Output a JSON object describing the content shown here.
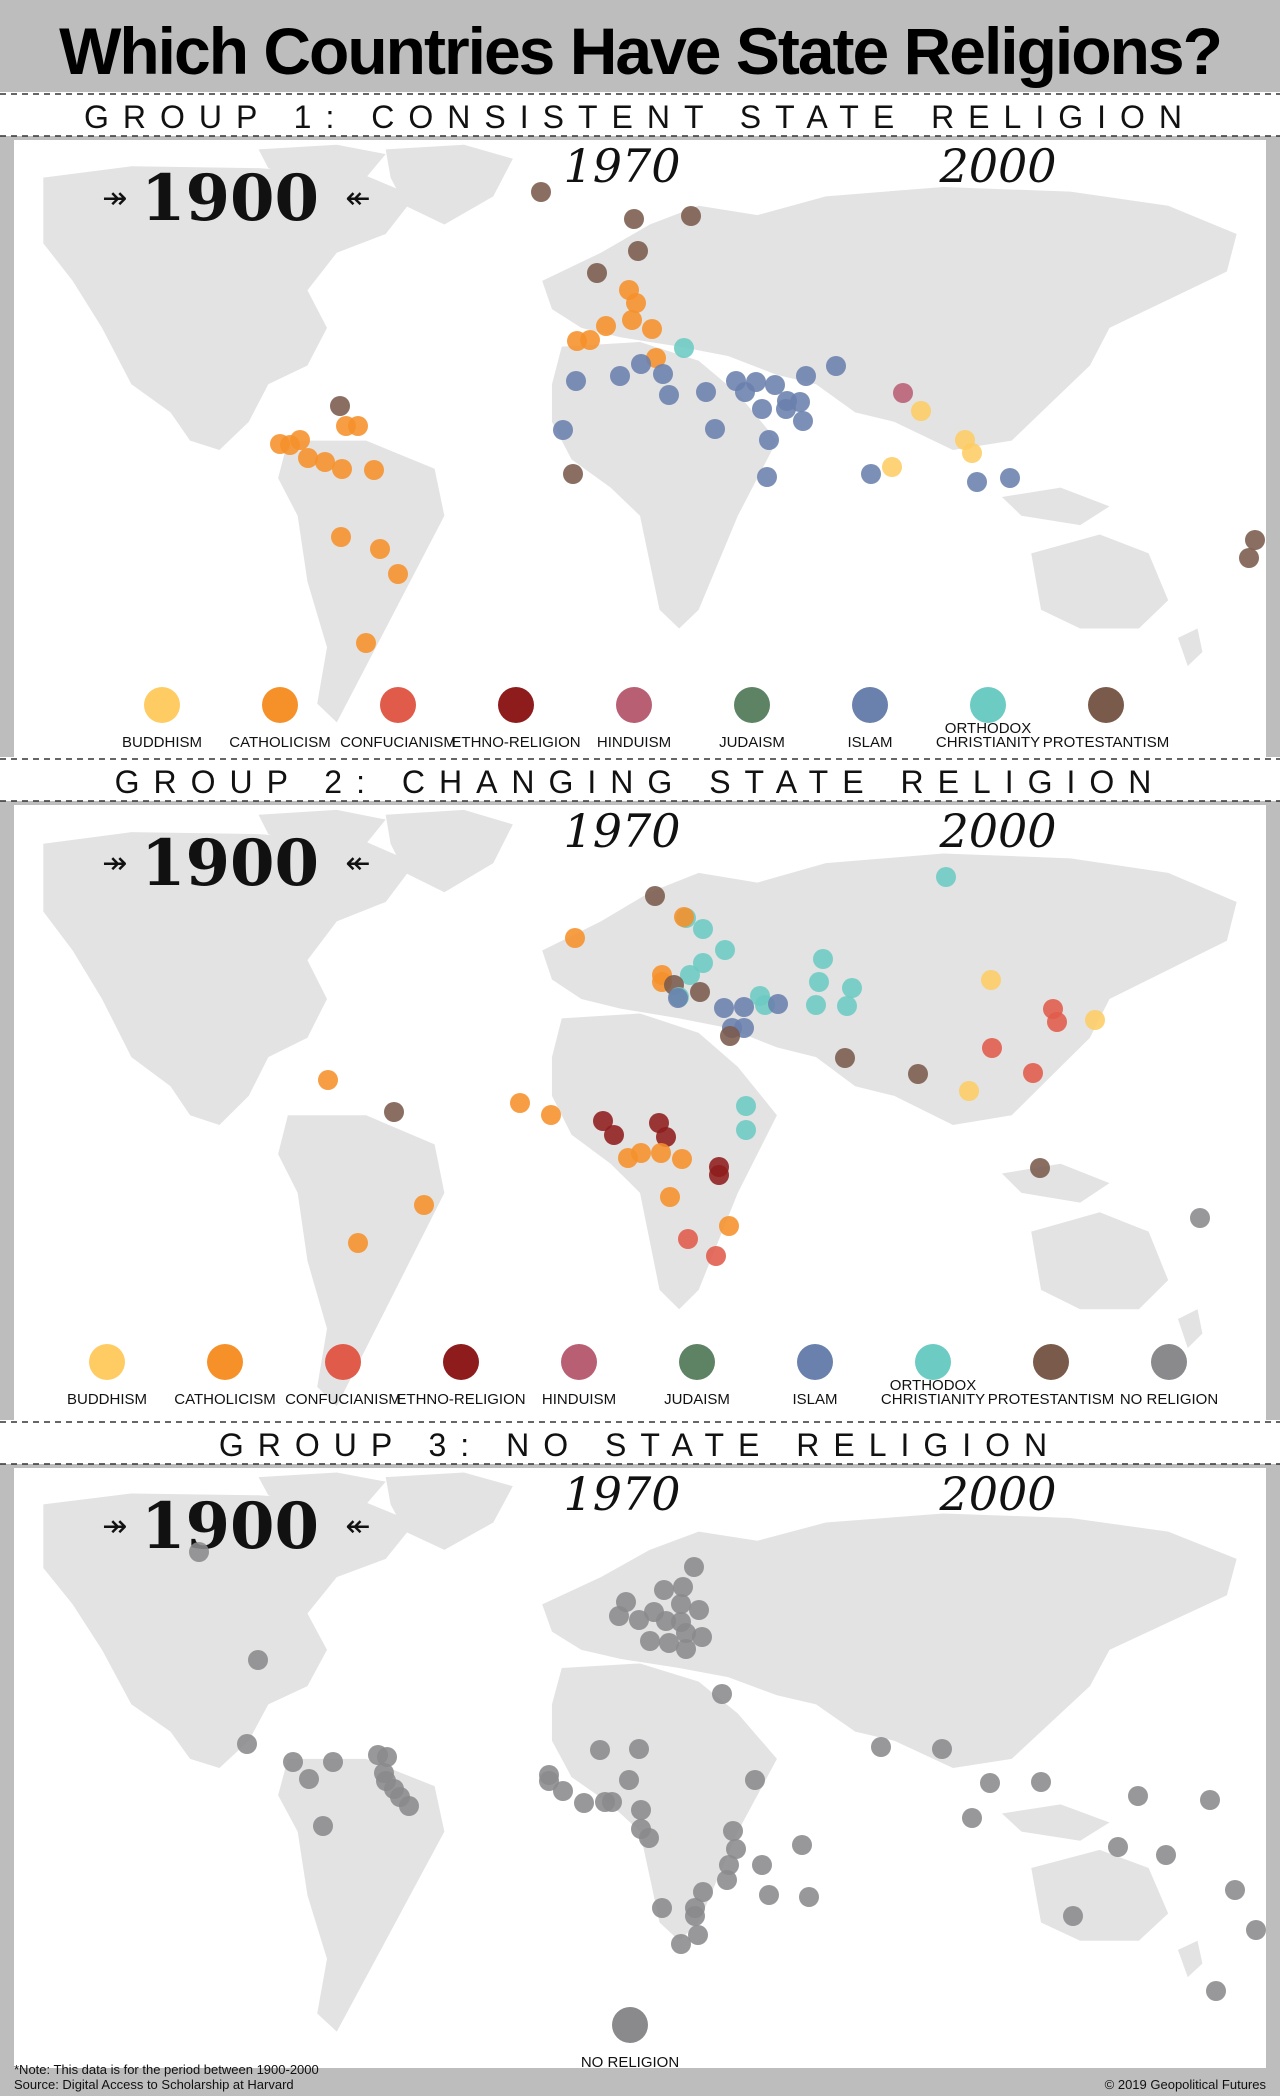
{
  "title": "Which Countries Have State Religions?",
  "years": {
    "active": "1900",
    "mid": "1970",
    "end": "2000"
  },
  "colors": {
    "buddhism": "#fecc63",
    "catholicism": "#f6912a",
    "confucianism": "#e05b4a",
    "ethno": "#8e1c1c",
    "hinduism": "#b95f74",
    "judaism": "#5d8364",
    "islam": "#6a80ad",
    "orthodox": "#6ccbc3",
    "protestantism": "#7a5a4b",
    "none": "#8a8a8c"
  },
  "groups": [
    {
      "heading": "GROUP 1: CONSISTENT STATE RELIGION",
      "legend": [
        {
          "key": "buddhism",
          "label": "BUDDHISM"
        },
        {
          "key": "catholicism",
          "label": "CATHOLICISM"
        },
        {
          "key": "confucianism",
          "label": "CONFUCIANISM"
        },
        {
          "key": "ethno",
          "label": "ETHNO-RELIGION"
        },
        {
          "key": "hinduism",
          "label": "HINDUISM"
        },
        {
          "key": "judaism",
          "label": "JUDAISM"
        },
        {
          "key": "islam",
          "label": "ISLAM"
        },
        {
          "key": "orthodox",
          "label": "ORTHODOX CHRISTIANITY"
        },
        {
          "key": "protestantism",
          "label": "PROTESTANTISM"
        }
      ]
    },
    {
      "heading": "GROUP 2: CHANGING STATE RELIGION",
      "legend": [
        {
          "key": "buddhism",
          "label": "BUDDHISM"
        },
        {
          "key": "catholicism",
          "label": "CATHOLICISM"
        },
        {
          "key": "confucianism",
          "label": "CONFUCIANISM"
        },
        {
          "key": "ethno",
          "label": "ETHNO-RELIGION"
        },
        {
          "key": "hinduism",
          "label": "HINDUISM"
        },
        {
          "key": "judaism",
          "label": "JUDAISM"
        },
        {
          "key": "islam",
          "label": "ISLAM"
        },
        {
          "key": "orthodox",
          "label": "ORTHODOX CHRISTIANITY"
        },
        {
          "key": "protestantism",
          "label": "PROTESTANTISM"
        },
        {
          "key": "none",
          "label": "NO RELIGION"
        }
      ]
    },
    {
      "heading": "GROUP 3: NO STATE RELIGION",
      "legend": [
        {
          "key": "none",
          "label": "NO RELIGION"
        }
      ]
    }
  ],
  "note": "*Note: This data is for the period between 1900-2000",
  "source": "Source: Digital Access to Scholarship at Harvard",
  "copyright": "© 2019 Geopolitical Futures"
}
